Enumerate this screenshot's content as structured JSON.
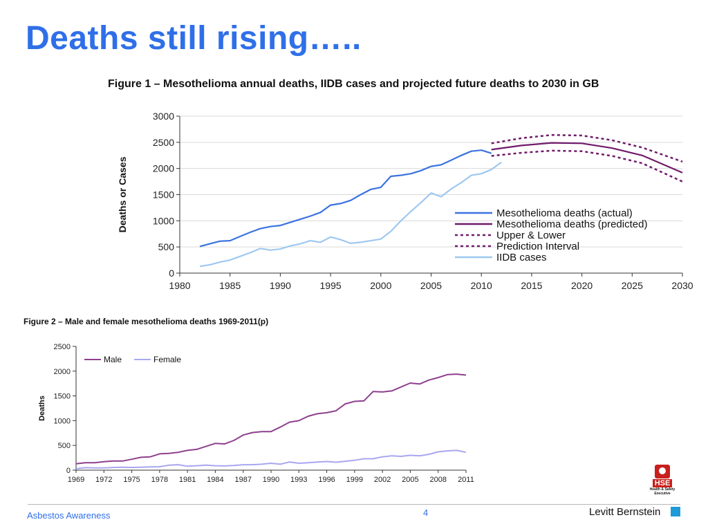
{
  "slide": {
    "title": "Deaths still rising…..",
    "footer_left": "Asbestos Awareness",
    "page_number": "4",
    "brand": "Levitt Bernstein",
    "brand_color": "#1e9bd7",
    "title_color": "#2f6fe8"
  },
  "logo": {
    "icon": "hse-logo-icon",
    "lines": [
      "HSE",
      "Health & Safety",
      "Executive"
    ]
  },
  "chart_data": [
    {
      "type": "line",
      "title": "Figure 1 – Mesothelioma annual deaths, IIDB cases and projected future deaths to 2030 in GB",
      "xlabel": "",
      "ylabel": "Deaths or Cases",
      "xlim": [
        1980,
        2030
      ],
      "ylim": [
        0,
        3000
      ],
      "x_ticks": [
        1980,
        1985,
        1990,
        1995,
        2000,
        2005,
        2010,
        2015,
        2020,
        2025,
        2030
      ],
      "y_ticks": [
        0,
        500,
        1000,
        1500,
        2000,
        2500,
        3000
      ],
      "grid": "horizontal",
      "legend_position": "bottom-right",
      "series": [
        {
          "name": "Mesothelioma deaths (actual)",
          "color": "#3a72e0",
          "style": "solid",
          "points": [
            [
              1982,
              510
            ],
            [
              1983,
              560
            ],
            [
              1984,
              610
            ],
            [
              1985,
              620
            ],
            [
              1986,
              700
            ],
            [
              1987,
              780
            ],
            [
              1988,
              850
            ],
            [
              1989,
              890
            ],
            [
              1990,
              910
            ],
            [
              1991,
              970
            ],
            [
              1992,
              1030
            ],
            [
              1993,
              1090
            ],
            [
              1994,
              1160
            ],
            [
              1995,
              1300
            ],
            [
              1996,
              1330
            ],
            [
              1997,
              1390
            ],
            [
              1998,
              1500
            ],
            [
              1999,
              1600
            ],
            [
              2000,
              1640
            ],
            [
              2001,
              1850
            ],
            [
              2002,
              1870
            ],
            [
              2003,
              1900
            ],
            [
              2004,
              1960
            ],
            [
              2005,
              2040
            ],
            [
              2006,
              2070
            ],
            [
              2007,
              2160
            ],
            [
              2008,
              2250
            ],
            [
              2009,
              2330
            ],
            [
              2010,
              2350
            ],
            [
              2011,
              2290
            ]
          ]
        },
        {
          "name": "Mesothelioma deaths (predicted)",
          "color": "#6f1a6a",
          "style": "solid",
          "points": [
            [
              2011,
              2360
            ],
            [
              2014,
              2440
            ],
            [
              2017,
              2490
            ],
            [
              2020,
              2480
            ],
            [
              2023,
              2390
            ],
            [
              2026,
              2250
            ],
            [
              2030,
              1920
            ]
          ]
        },
        {
          "name": "Upper & Lower",
          "color": "#6f1a6a",
          "style": "dotted",
          "points": [
            [
              2011,
              2480
            ],
            [
              2014,
              2580
            ],
            [
              2017,
              2640
            ],
            [
              2020,
              2630
            ],
            [
              2023,
              2540
            ],
            [
              2026,
              2400
            ],
            [
              2030,
              2130
            ]
          ]
        },
        {
          "name": "Prediction Interval",
          "color": "#6f1a6a",
          "style": "dotted",
          "points": [
            [
              2011,
              2240
            ],
            [
              2014,
              2300
            ],
            [
              2017,
              2340
            ],
            [
              2020,
              2330
            ],
            [
              2023,
              2240
            ],
            [
              2026,
              2100
            ],
            [
              2030,
              1750
            ]
          ]
        },
        {
          "name": "IIDB cases",
          "color": "#9ec8f0",
          "style": "solid",
          "points": [
            [
              1982,
              130
            ],
            [
              1983,
              160
            ],
            [
              1984,
              210
            ],
            [
              1985,
              250
            ],
            [
              1986,
              320
            ],
            [
              1987,
              390
            ],
            [
              1988,
              470
            ],
            [
              1989,
              440
            ],
            [
              1990,
              460
            ],
            [
              1991,
              520
            ],
            [
              1992,
              560
            ],
            [
              1993,
              620
            ],
            [
              1994,
              590
            ],
            [
              1995,
              690
            ],
            [
              1996,
              640
            ],
            [
              1997,
              570
            ],
            [
              1998,
              590
            ],
            [
              1999,
              620
            ],
            [
              2000,
              650
            ],
            [
              2001,
              800
            ],
            [
              2002,
              1000
            ],
            [
              2003,
              1180
            ],
            [
              2004,
              1350
            ],
            [
              2005,
              1530
            ],
            [
              2006,
              1460
            ],
            [
              2007,
              1610
            ],
            [
              2008,
              1730
            ],
            [
              2009,
              1870
            ],
            [
              2010,
              1900
            ],
            [
              2011,
              1980
            ],
            [
              2012,
              2120
            ]
          ]
        }
      ]
    },
    {
      "type": "line",
      "title": "Figure 2 – Male and female mesothelioma deaths 1969-2011(p)",
      "xlabel": "",
      "ylabel": "Deaths",
      "xlim": [
        1969,
        2011
      ],
      "ylim": [
        0,
        2500
      ],
      "x_ticks": [
        1969,
        1972,
        1975,
        1978,
        1981,
        1984,
        1987,
        1990,
        1993,
        1996,
        1999,
        2002,
        2005,
        2008,
        2011
      ],
      "y_ticks": [
        0,
        500,
        1000,
        1500,
        2000,
        2500
      ],
      "grid": "none",
      "legend_position": "top-left",
      "categories": [
        1969,
        1970,
        1971,
        1972,
        1973,
        1974,
        1975,
        1976,
        1977,
        1978,
        1979,
        1980,
        1981,
        1982,
        1983,
        1984,
        1985,
        1986,
        1987,
        1988,
        1989,
        1990,
        1991,
        1992,
        1993,
        1994,
        1995,
        1996,
        1997,
        1998,
        1999,
        2000,
        2001,
        2002,
        2003,
        2004,
        2005,
        2006,
        2007,
        2008,
        2009,
        2010,
        2011
      ],
      "series": [
        {
          "name": "Male",
          "color": "#8e3f8e",
          "values": [
            130,
            150,
            150,
            170,
            185,
            185,
            220,
            260,
            270,
            330,
            340,
            360,
            400,
            420,
            480,
            540,
            530,
            600,
            710,
            760,
            780,
            780,
            870,
            970,
            1000,
            1090,
            1140,
            1160,
            1200,
            1340,
            1390,
            1400,
            1590,
            1580,
            1600,
            1680,
            1760,
            1740,
            1820,
            1870,
            1930,
            1940,
            1920
          ]
        },
        {
          "name": "Female",
          "color": "#a7a7f0",
          "values": [
            30,
            50,
            45,
            45,
            55,
            60,
            55,
            60,
            65,
            70,
            100,
            110,
            80,
            90,
            100,
            90,
            85,
            95,
            110,
            110,
            120,
            140,
            120,
            165,
            140,
            150,
            165,
            175,
            160,
            180,
            200,
            230,
            230,
            270,
            290,
            280,
            300,
            290,
            320,
            370,
            390,
            400,
            360
          ]
        }
      ]
    }
  ]
}
